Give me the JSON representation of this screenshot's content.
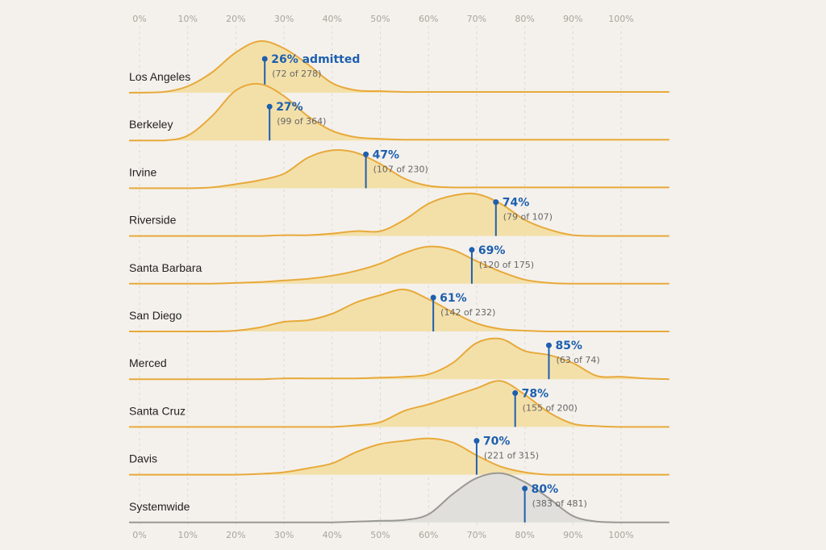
{
  "chart_data": {
    "type": "ridgeline",
    "title": "",
    "xlabel": "",
    "ylabel": "",
    "xlim": [
      0,
      110
    ],
    "x_ticks": [
      "0%",
      "10%",
      "20%",
      "30%",
      "40%",
      "50%",
      "60%",
      "70%",
      "80%",
      "90%",
      "100%"
    ],
    "grid": "vertical dashed",
    "colors": {
      "campus_fill": "#f3e0a9",
      "campus_line": "#e8a93a",
      "system_fill": "#e0dfdc",
      "system_line": "#9a9894",
      "marker": "#1d5fae"
    },
    "density_x": [
      0,
      5,
      10,
      15,
      20,
      25,
      30,
      35,
      40,
      45,
      50,
      55,
      60,
      65,
      70,
      75,
      80,
      85,
      90,
      95,
      100,
      105,
      110
    ],
    "series": [
      {
        "name": "Los Angeles",
        "rate_label": "26% admitted",
        "rate": 26,
        "count_label": "(72 of 278)",
        "density": [
          0,
          1,
          8,
          25,
          50,
          64,
          55,
          35,
          12,
          3,
          2,
          1,
          1,
          1,
          1,
          1,
          1,
          1,
          1,
          1,
          1,
          1,
          1
        ]
      },
      {
        "name": "Berkeley",
        "rate_label": "27%",
        "rate": 27,
        "count_label": "(99 of 364)",
        "density": [
          0,
          0,
          6,
          30,
          62,
          70,
          55,
          30,
          12,
          4,
          2,
          1,
          1,
          1,
          1,
          1,
          1,
          1,
          1,
          1,
          1,
          1,
          1
        ]
      },
      {
        "name": "Irvine",
        "rate_label": "47%",
        "rate": 47,
        "count_label": "(107 of 230)",
        "density": [
          0,
          0,
          0,
          1,
          5,
          10,
          18,
          38,
          47,
          44,
          30,
          12,
          3,
          1,
          1,
          1,
          1,
          1,
          1,
          1,
          1,
          1,
          1
        ]
      },
      {
        "name": "Riverside",
        "rate_label": "74%",
        "rate": 74,
        "count_label": "(79 of 107)",
        "density": [
          0,
          0,
          0,
          0,
          0,
          0,
          1,
          1,
          3,
          6,
          6,
          20,
          40,
          50,
          52,
          40,
          20,
          8,
          1,
          0,
          0,
          0,
          0
        ]
      },
      {
        "name": "Santa Barbara",
        "rate_label": "69%",
        "rate": 69,
        "count_label": "(120 of 175)",
        "density": [
          0,
          0,
          0,
          0,
          1,
          2,
          4,
          6,
          10,
          16,
          25,
          38,
          46,
          42,
          28,
          15,
          5,
          1,
          0,
          0,
          0,
          0,
          0
        ]
      },
      {
        "name": "San Diego",
        "rate_label": "61%",
        "rate": 61,
        "count_label": "(142 of 232)",
        "density": [
          0,
          0,
          0,
          0,
          1,
          5,
          12,
          14,
          22,
          36,
          45,
          52,
          40,
          24,
          10,
          3,
          1,
          0,
          0,
          0,
          0,
          0,
          0
        ]
      },
      {
        "name": "Merced",
        "rate_label": "85%",
        "rate": 85,
        "count_label": "(63 of 74)",
        "density": [
          0,
          0,
          0,
          0,
          0,
          0,
          1,
          1,
          1,
          1,
          2,
          3,
          6,
          20,
          45,
          50,
          35,
          30,
          20,
          4,
          3,
          1,
          0
        ]
      },
      {
        "name": "Santa Cruz",
        "rate_label": "78%",
        "rate": 78,
        "count_label": "(155 of 200)",
        "density": [
          0,
          0,
          0,
          0,
          0,
          0,
          0,
          0,
          0,
          2,
          6,
          20,
          28,
          38,
          48,
          57,
          40,
          18,
          4,
          1,
          0,
          0,
          0
        ]
      },
      {
        "name": "Davis",
        "rate_label": "70%",
        "rate": 70,
        "count_label": "(221 of 315)",
        "density": [
          0,
          0,
          0,
          0,
          0,
          1,
          3,
          8,
          14,
          28,
          38,
          42,
          45,
          40,
          24,
          10,
          3,
          0,
          0,
          0,
          0,
          0,
          0
        ]
      },
      {
        "name": "Systemwide",
        "rate_label": "80%",
        "rate": 80,
        "count_label": "(383 of 481)",
        "density": [
          0,
          0,
          0,
          0,
          0,
          0,
          0,
          0,
          0,
          1,
          2,
          3,
          10,
          35,
          55,
          61,
          50,
          30,
          8,
          1,
          0,
          0,
          0
        ],
        "systemwide": true
      }
    ]
  }
}
